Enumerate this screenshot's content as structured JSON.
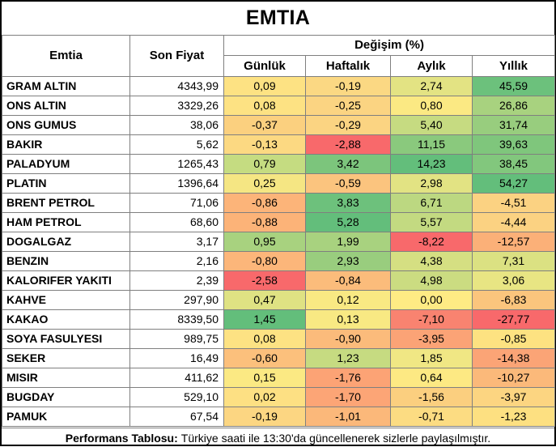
{
  "title": "EMTIA",
  "headers": {
    "emtia": "Emtia",
    "son_fiyat": "Son Fiyat",
    "degisim": "Değişim (%)",
    "gunluk": "Günlük",
    "haftalik": "Haftalık",
    "aylik": "Aylık",
    "yillik": "Yıllık"
  },
  "rows": [
    {
      "name": "GRAM ALTIN",
      "price": "4343,99",
      "values": [
        "0,09",
        "-0,19",
        "2,74",
        "45,59"
      ],
      "colors": [
        "#fde283",
        "#fbd883",
        "#e3e383",
        "#6cc17c"
      ]
    },
    {
      "name": "ONS ALTIN",
      "price": "3329,26",
      "values": [
        "0,08",
        "-0,25",
        "0,80",
        "26,86"
      ],
      "colors": [
        "#fde283",
        "#fbd482",
        "#fbe983",
        "#a8d27f"
      ]
    },
    {
      "name": "ONS GUMUS",
      "price": "38,06",
      "values": [
        "-0,37",
        "-0,29",
        "5,40",
        "31,74"
      ],
      "colors": [
        "#fbd07f",
        "#fbd482",
        "#c6db81",
        "#98cd7e"
      ]
    },
    {
      "name": "BAKIR",
      "price": "5,62",
      "values": [
        "-0,13",
        "-2,88",
        "11,15",
        "39,63"
      ],
      "colors": [
        "#fcd982",
        "#f8696b",
        "#8ac97d",
        "#7fc67c"
      ]
    },
    {
      "name": "PALADYUM",
      "price": "1265,43",
      "values": [
        "0,79",
        "3,42",
        "14,23",
        "38,45"
      ],
      "colors": [
        "#c5dc81",
        "#7cc57c",
        "#63be7b",
        "#82c77d"
      ]
    },
    {
      "name": "PLATIN",
      "price": "1396,64",
      "values": [
        "0,25",
        "-0,59",
        "2,98",
        "54,27"
      ],
      "colors": [
        "#f5e683",
        "#fbc47e",
        "#e2e383",
        "#63be7b"
      ]
    },
    {
      "name": "BRENT PETROL",
      "price": "71,06",
      "values": [
        "-0,86",
        "3,83",
        "6,71",
        "-4,51"
      ],
      "colors": [
        "#fcb479",
        "#6dc17c",
        "#bcd881",
        "#fbd282"
      ]
    },
    {
      "name": "HAM PETROL",
      "price": "68,60",
      "values": [
        "-0,88",
        "5,28",
        "5,57",
        "-4,44"
      ],
      "colors": [
        "#fcb378",
        "#63be7b",
        "#c3da81",
        "#fbd282"
      ]
    },
    {
      "name": "DOGALGAZ",
      "price": "3,17",
      "values": [
        "0,95",
        "1,99",
        "-8,22",
        "-12,57"
      ],
      "colors": [
        "#a8d27f",
        "#a8d27f",
        "#f8696b",
        "#fbb078"
      ]
    },
    {
      "name": "BENZIN",
      "price": "2,16",
      "values": [
        "-0,80",
        "2,93",
        "4,38",
        "7,31"
      ],
      "colors": [
        "#fcb67a",
        "#99cd7e",
        "#d5df82",
        "#dbe182"
      ]
    },
    {
      "name": "KALORIFER YAKITI",
      "price": "2,39",
      "values": [
        "-2,58",
        "-0,84",
        "4,98",
        "3,06"
      ],
      "colors": [
        "#f8696b",
        "#fbbc7b",
        "#cbdc81",
        "#e8e583"
      ]
    },
    {
      "name": "KAHVE",
      "price": "297,90",
      "values": [
        "0,47",
        "0,12",
        "0,00",
        "-6,83"
      ],
      "colors": [
        "#dfe283",
        "#f9e983",
        "#feeb84",
        "#fbc57d"
      ]
    },
    {
      "name": "KAKAO",
      "price": "8339,50",
      "values": [
        "1,45",
        "0,13",
        "-7,10",
        "-27,77"
      ],
      "colors": [
        "#63be7b",
        "#f8e983",
        "#f98370",
        "#f8696b"
      ]
    },
    {
      "name": "SOYA FASULYESI",
      "price": "989,75",
      "values": [
        "0,08",
        "-0,90",
        "-3,95",
        "-0,85"
      ],
      "colors": [
        "#fde283",
        "#fbbb7b",
        "#fba376",
        "#fde281"
      ]
    },
    {
      "name": "SEKER",
      "price": "16,49",
      "values": [
        "-0,60",
        "1,23",
        "1,85",
        "-14,38"
      ],
      "colors": [
        "#fcc07c",
        "#c6db81",
        "#f0e784",
        "#fba476"
      ]
    },
    {
      "name": "MISIR",
      "price": "411,62",
      "values": [
        "0,15",
        "-1,76",
        "0,64",
        "-10,27"
      ],
      "colors": [
        "#fbe983",
        "#fca375",
        "#fde983",
        "#fbb97a"
      ]
    },
    {
      "name": "BUGDAY",
      "price": "529,10",
      "values": [
        "0,02",
        "-1,70",
        "-1,56",
        "-3,97"
      ],
      "colors": [
        "#fde083",
        "#fca576",
        "#fbcf7f",
        "#fcd581"
      ]
    },
    {
      "name": "PAMUK",
      "price": "67,54",
      "values": [
        "-0,19",
        "-1,01",
        "-0,71",
        "-1,23"
      ],
      "colors": [
        "#fcd682",
        "#fbb87a",
        "#fcdc82",
        "#fde081"
      ]
    }
  ],
  "footer": {
    "label": "Performans Tablosu:",
    "text": "Türkiye saati ile 13:30'da güncellenerek sizlerle paylaşılmıştır."
  }
}
